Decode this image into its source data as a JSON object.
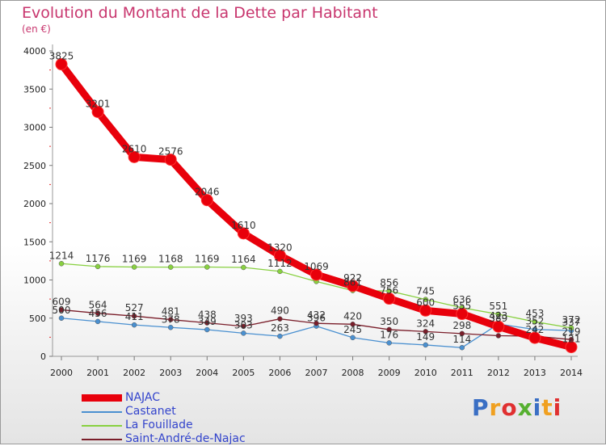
{
  "chart_data": {
    "type": "line",
    "title": "Evolution du Montant de la Dette par Habitant",
    "unit_label": "(en €)",
    "x": [
      "2000",
      "2001",
      "2002",
      "2003",
      "2004",
      "2005",
      "2006",
      "2007",
      "2008",
      "2009",
      "2010",
      "2011",
      "2012",
      "2013",
      "2014"
    ],
    "ylim": [
      0,
      4000
    ],
    "yticks": [
      0,
      500,
      1000,
      1500,
      2000,
      2500,
      3000,
      3500,
      4000
    ],
    "grid": false,
    "legend_position": "bottom-left",
    "series": [
      {
        "name": "NAJAC",
        "color": "#e8000b",
        "values": [
          3825,
          3201,
          2610,
          2576,
          2046,
          1610,
          1320,
          1069,
          922,
          756,
          600,
          555,
          389,
          242,
          121
        ]
      },
      {
        "name": "Castanet",
        "color": "#4a90d0",
        "values": [
          500,
          456,
          411,
          378,
          349,
          303,
          263,
          396,
          245,
          176,
          149,
          114,
          423,
          352,
          337
        ]
      },
      {
        "name": "La Fouillade",
        "color": "#88d040",
        "values": [
          1214,
          1176,
          1169,
          1168,
          1169,
          1164,
          1112,
          980,
          861,
          856,
          745,
          636,
          551,
          453,
          372
        ]
      },
      {
        "name": "Saint-André-de-Najac",
        "color": "#7a1e2a",
        "values": [
          609,
          564,
          527,
          481,
          438,
          393,
          490,
          432,
          420,
          350,
          324,
          298,
          270,
          264,
          219
        ]
      }
    ],
    "data_labels": [
      {
        "text": "3825",
        "x": "2000",
        "y": 3825
      },
      {
        "text": "3201",
        "x": "2001",
        "y": 3201
      },
      {
        "text": "2610",
        "x": "2002",
        "y": 2610
      },
      {
        "text": "2576",
        "x": "2003",
        "y": 2576
      },
      {
        "text": "2046",
        "x": "2004",
        "y": 2046
      },
      {
        "text": "1610",
        "x": "2005",
        "y": 1610
      },
      {
        "text": "1320",
        "x": "2006",
        "y": 1320
      },
      {
        "text": "1069",
        "x": "2007",
        "y": 1069
      },
      {
        "text": "922",
        "x": "2008",
        "y": 922
      },
      {
        "text": "756",
        "x": "2009",
        "y": 756
      },
      {
        "text": "600",
        "x": "2010",
        "y": 600
      },
      {
        "text": "555",
        "x": "2011",
        "y": 555
      },
      {
        "text": "389",
        "x": "2012",
        "y": 389
      },
      {
        "text": "242",
        "x": "2013",
        "y": 242
      },
      {
        "text": "121",
        "x": "2014",
        "y": 121
      },
      {
        "text": "1214",
        "x": "2000",
        "y": 1214
      },
      {
        "text": "1176",
        "x": "2001",
        "y": 1176
      },
      {
        "text": "1169",
        "x": "2002",
        "y": 1169
      },
      {
        "text": "1168",
        "x": "2003",
        "y": 1168
      },
      {
        "text": "1169",
        "x": "2004",
        "y": 1169
      },
      {
        "text": "1164",
        "x": "2005",
        "y": 1164
      },
      {
        "text": "1112",
        "x": "2006",
        "y": 1112
      },
      {
        "text": "861",
        "x": "2008",
        "y": 861
      },
      {
        "text": "856",
        "x": "2009",
        "y": 856
      },
      {
        "text": "745",
        "x": "2010",
        "y": 745
      },
      {
        "text": "636",
        "x": "2011",
        "y": 636
      },
      {
        "text": "551",
        "x": "2012",
        "y": 551
      },
      {
        "text": "453",
        "x": "2013",
        "y": 453
      },
      {
        "text": "372",
        "x": "2014",
        "y": 372
      },
      {
        "text": "609",
        "x": "2000",
        "y": 609
      },
      {
        "text": "564",
        "x": "2001",
        "y": 564
      },
      {
        "text": "527",
        "x": "2002",
        "y": 527
      },
      {
        "text": "481",
        "x": "2003",
        "y": 481
      },
      {
        "text": "438",
        "x": "2004",
        "y": 438
      },
      {
        "text": "393",
        "x": "2005",
        "y": 393
      },
      {
        "text": "490",
        "x": "2006",
        "y": 490
      },
      {
        "text": "432",
        "x": "2007",
        "y": 432
      },
      {
        "text": "420",
        "x": "2008",
        "y": 420
      },
      {
        "text": "350",
        "x": "2009",
        "y": 350
      },
      {
        "text": "324",
        "x": "2010",
        "y": 324
      },
      {
        "text": "298",
        "x": "2011",
        "y": 298
      },
      {
        "text": "219",
        "x": "2014",
        "y": 219
      },
      {
        "text": "500",
        "x": "2000",
        "y": 500
      },
      {
        "text": "456",
        "x": "2001",
        "y": 456
      },
      {
        "text": "411",
        "x": "2002",
        "y": 411
      },
      {
        "text": "378",
        "x": "2003",
        "y": 378
      },
      {
        "text": "349",
        "x": "2004",
        "y": 349
      },
      {
        "text": "303",
        "x": "2005",
        "y": 303
      },
      {
        "text": "263",
        "x": "2006",
        "y": 263
      },
      {
        "text": "396",
        "x": "2007",
        "y": 396
      },
      {
        "text": "245",
        "x": "2008",
        "y": 245
      },
      {
        "text": "176",
        "x": "2009",
        "y": 176
      },
      {
        "text": "149",
        "x": "2010",
        "y": 149
      },
      {
        "text": "114",
        "x": "2011",
        "y": 114
      },
      {
        "text": "423",
        "x": "2012",
        "y": 423
      },
      {
        "text": "352",
        "x": "2013",
        "y": 352
      },
      {
        "text": "337",
        "x": "2014",
        "y": 337
      }
    ]
  },
  "logo": {
    "text": "Proxiti",
    "colors": [
      "#3a6fc4",
      "#f0a020",
      "#e03030",
      "#56b030",
      "#3a6fc4",
      "#f0a020",
      "#e03030"
    ]
  }
}
